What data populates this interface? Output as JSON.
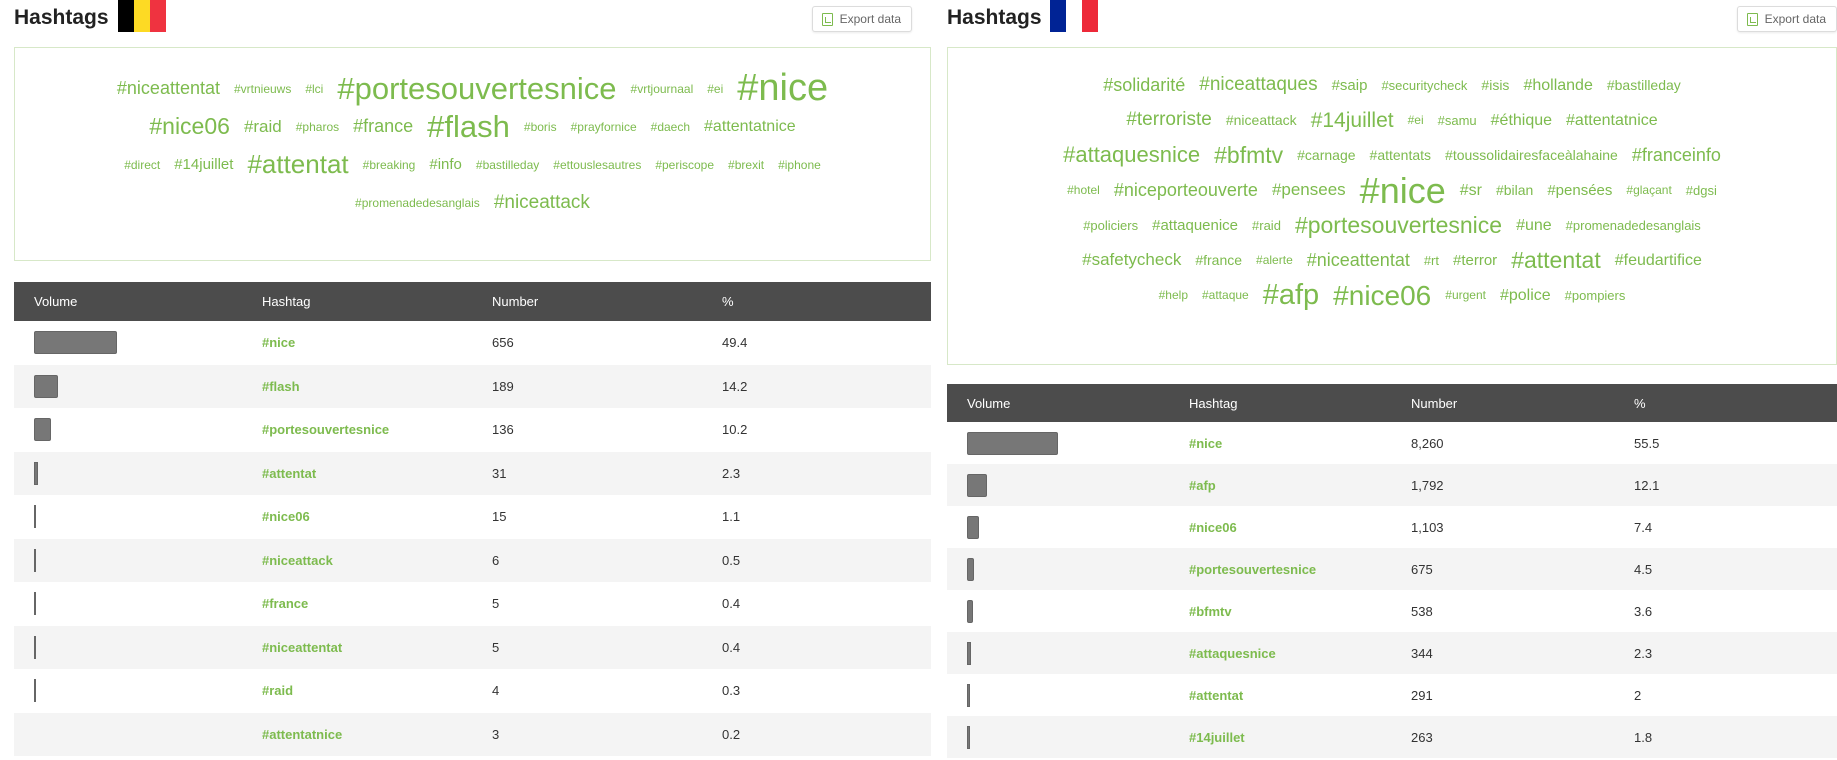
{
  "panels": [
    {
      "title": "Hashtags",
      "flag": [
        "#000000",
        "#FDDA24",
        "#EF3340"
      ],
      "export_label": "Export data",
      "cloud": [
        [
          {
            "text": "#niceattentat",
            "size": 18
          },
          {
            "text": "#vrtnieuws",
            "size": 12
          },
          {
            "text": "#lci",
            "size": 12
          },
          {
            "text": "#portesouvertesnice",
            "size": 31
          },
          {
            "text": "#vrtjournaal",
            "size": 12
          },
          {
            "text": "#ei",
            "size": 12
          },
          {
            "text": "#nice",
            "size": 38
          }
        ],
        [
          {
            "text": "#nice06",
            "size": 23
          },
          {
            "text": "#raid",
            "size": 17
          },
          {
            "text": "#pharos",
            "size": 12
          },
          {
            "text": "#france",
            "size": 18
          },
          {
            "text": "#flash",
            "size": 31
          },
          {
            "text": "#boris",
            "size": 12
          },
          {
            "text": "#prayfornice",
            "size": 12
          },
          {
            "text": "#daech",
            "size": 12
          },
          {
            "text": "#attentatnice",
            "size": 16
          }
        ],
        [
          {
            "text": "#direct",
            "size": 12
          },
          {
            "text": "#14juillet",
            "size": 15
          },
          {
            "text": "#attentat",
            "size": 26
          },
          {
            "text": "#breaking",
            "size": 12
          },
          {
            "text": "#info",
            "size": 15
          },
          {
            "text": "#bastilleday",
            "size": 12
          },
          {
            "text": "#ettouslesautres",
            "size": 12
          },
          {
            "text": "#periscope",
            "size": 12
          },
          {
            "text": "#brexit",
            "size": 12
          },
          {
            "text": "#iphone",
            "size": 12
          }
        ],
        [
          {
            "text": "#promenadedesanglais",
            "size": 12
          },
          {
            "text": "#niceattack",
            "size": 19
          }
        ]
      ],
      "columns": [
        "Volume",
        "Hashtag",
        "Number",
        "%"
      ],
      "rows": [
        {
          "tag": "#nice",
          "number": "656",
          "pct": "49.4",
          "volume": 0.494
        },
        {
          "tag": "#flash",
          "number": "189",
          "pct": "14.2",
          "volume": 0.142
        },
        {
          "tag": "#portesouvertesnice",
          "number": "136",
          "pct": "10.2",
          "volume": 0.102
        },
        {
          "tag": "#attentat",
          "number": "31",
          "pct": "2.3",
          "volume": 0.023
        },
        {
          "tag": "#nice06",
          "number": "15",
          "pct": "1.1",
          "volume": 0.011
        },
        {
          "tag": "#niceattack",
          "number": "6",
          "pct": "0.5",
          "volume": 0.005
        },
        {
          "tag": "#france",
          "number": "5",
          "pct": "0.4",
          "volume": 0.004
        },
        {
          "tag": "#niceattentat",
          "number": "5",
          "pct": "0.4",
          "volume": 0.004
        },
        {
          "tag": "#raid",
          "number": "4",
          "pct": "0.3",
          "volume": 0.003
        },
        {
          "tag": "#attentatnice",
          "number": "3",
          "pct": "0.2",
          "volume": 0.002
        }
      ]
    },
    {
      "title": "Hashtags",
      "flag": [
        "#002395",
        "#FFFFFF",
        "#ED2939"
      ],
      "export_label": "Export data",
      "cloud": [
        [
          {
            "text": "#solidarité",
            "size": 18
          },
          {
            "text": "#niceattaques",
            "size": 19
          },
          {
            "text": "#saip",
            "size": 15
          },
          {
            "text": "#securitycheck",
            "size": 13
          },
          {
            "text": "#isis",
            "size": 14
          },
          {
            "text": "#hollande",
            "size": 16
          },
          {
            "text": "#bastilleday",
            "size": 14
          }
        ],
        [
          {
            "text": "#terroriste",
            "size": 19
          },
          {
            "text": "#niceattack",
            "size": 14
          },
          {
            "text": "#14juillet",
            "size": 21
          },
          {
            "text": "#ei",
            "size": 12
          },
          {
            "text": "#samu",
            "size": 13
          },
          {
            "text": "#éthique",
            "size": 16
          },
          {
            "text": "#attentatnice",
            "size": 16
          }
        ],
        [
          {
            "text": "#attaquesnice",
            "size": 22
          },
          {
            "text": "#bfmtv",
            "size": 23
          },
          {
            "text": "#carnage",
            "size": 14
          },
          {
            "text": "#attentats",
            "size": 14
          },
          {
            "text": "#toussolidairesfaceàlahaine",
            "size": 14
          },
          {
            "text": "#franceinfo",
            "size": 18
          }
        ],
        [
          {
            "text": "#hotel",
            "size": 12
          },
          {
            "text": "#niceporteouverte",
            "size": 18
          },
          {
            "text": "#pensees",
            "size": 17
          },
          {
            "text": "#nice",
            "size": 36
          },
          {
            "text": "#sr",
            "size": 16
          },
          {
            "text": "#bilan",
            "size": 14
          },
          {
            "text": "#pensées",
            "size": 15
          },
          {
            "text": "#glaçant",
            "size": 12
          },
          {
            "text": "#dgsi",
            "size": 13
          }
        ],
        [
          {
            "text": "#policiers",
            "size": 13
          },
          {
            "text": "#attaquenice",
            "size": 15
          },
          {
            "text": "#raid",
            "size": 13
          },
          {
            "text": "#portesouvertesnice",
            "size": 23
          },
          {
            "text": "#une",
            "size": 16
          },
          {
            "text": "#promenadedesanglais",
            "size": 13
          }
        ],
        [
          {
            "text": "#safetycheck",
            "size": 17
          },
          {
            "text": "#france",
            "size": 14
          },
          {
            "text": "#alerte",
            "size": 12
          },
          {
            "text": "#niceattentat",
            "size": 18
          },
          {
            "text": "#rt",
            "size": 13
          },
          {
            "text": "#terror",
            "size": 15
          },
          {
            "text": "#attentat",
            "size": 23
          },
          {
            "text": "#feudartifice",
            "size": 16
          }
        ],
        [
          {
            "text": "#help",
            "size": 12
          },
          {
            "text": "#attaque",
            "size": 12
          },
          {
            "text": "#afp",
            "size": 29
          },
          {
            "text": "#nice06",
            "size": 28
          },
          {
            "text": "#urgent",
            "size": 12
          },
          {
            "text": "#police",
            "size": 16
          },
          {
            "text": "#pompiers",
            "size": 13
          }
        ]
      ],
      "columns": [
        "Volume",
        "Hashtag",
        "Number",
        "%"
      ],
      "rows": [
        {
          "tag": "#nice",
          "number": "8,260",
          "pct": "55.5",
          "volume": 0.555
        },
        {
          "tag": "#afp",
          "number": "1,792",
          "pct": "12.1",
          "volume": 0.121
        },
        {
          "tag": "#nice06",
          "number": "1,103",
          "pct": "7.4",
          "volume": 0.074
        },
        {
          "tag": "#portesouvertesnice",
          "number": "675",
          "pct": "4.5",
          "volume": 0.045
        },
        {
          "tag": "#bfmtv",
          "number": "538",
          "pct": "3.6",
          "volume": 0.036
        },
        {
          "tag": "#attaquesnice",
          "number": "344",
          "pct": "2.3",
          "volume": 0.023
        },
        {
          "tag": "#attentat",
          "number": "291",
          "pct": "2",
          "volume": 0.02
        },
        {
          "tag": "#14juillet",
          "number": "263",
          "pct": "1.8",
          "volume": 0.018
        }
      ]
    }
  ]
}
